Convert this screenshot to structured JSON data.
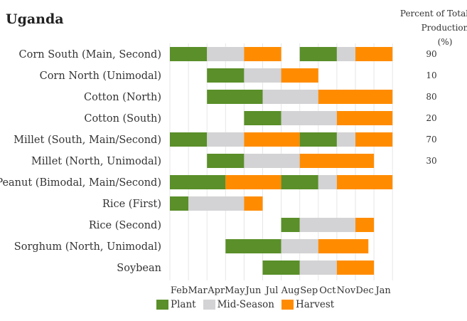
{
  "title": "Uganda",
  "pct_header": {
    "line1": "Percent of Total",
    "line2": "Production (%)"
  },
  "colors": {
    "plant": "#5a8f29",
    "mid": "#d3d2d4",
    "harvest": "#ff8c00",
    "grid": "#e6e6e6"
  },
  "chart_data": {
    "type": "bar",
    "subtype": "gantt-calendar",
    "x_tick_labels": [
      "Feb",
      "Mar",
      "Apr",
      "May",
      "Jun",
      "Jul",
      "Aug",
      "Sep",
      "Oct",
      "Nov",
      "Dec",
      "Jan"
    ],
    "legend": [
      {
        "key": "plant",
        "label": "Plant"
      },
      {
        "key": "mid",
        "label": "Mid-Season"
      },
      {
        "key": "harvest",
        "label": "Harvest"
      }
    ],
    "categories": [
      {
        "label": "Corn South (Main, Second)",
        "pct": "90",
        "segments": [
          {
            "stage": "plant",
            "start": 0,
            "end": 2
          },
          {
            "stage": "mid",
            "start": 2,
            "end": 4
          },
          {
            "stage": "harvest",
            "start": 4,
            "end": 6
          },
          {
            "stage": "plant",
            "start": 7,
            "end": 9
          },
          {
            "stage": "mid",
            "start": 9,
            "end": 10
          },
          {
            "stage": "harvest",
            "start": 10,
            "end": 12
          }
        ]
      },
      {
        "label": "Corn North (Unimodal)",
        "pct": "10",
        "segments": [
          {
            "stage": "plant",
            "start": 2,
            "end": 4
          },
          {
            "stage": "mid",
            "start": 4,
            "end": 6
          },
          {
            "stage": "harvest",
            "start": 6,
            "end": 8
          }
        ]
      },
      {
        "label": "Cotton (North)",
        "pct": "80",
        "segments": [
          {
            "stage": "plant",
            "start": 2,
            "end": 5
          },
          {
            "stage": "mid",
            "start": 5,
            "end": 8
          },
          {
            "stage": "harvest",
            "start": 8,
            "end": 12
          }
        ]
      },
      {
        "label": "Cotton (South)",
        "pct": "20",
        "segments": [
          {
            "stage": "plant",
            "start": 4,
            "end": 6
          },
          {
            "stage": "mid",
            "start": 6,
            "end": 9
          },
          {
            "stage": "harvest",
            "start": 9,
            "end": 12
          }
        ]
      },
      {
        "label": "Millet (South, Main/Second)",
        "pct": "70",
        "segments": [
          {
            "stage": "plant",
            "start": 0,
            "end": 2
          },
          {
            "stage": "mid",
            "start": 2,
            "end": 4
          },
          {
            "stage": "harvest",
            "start": 4,
            "end": 7
          },
          {
            "stage": "plant",
            "start": 7,
            "end": 9
          },
          {
            "stage": "mid",
            "start": 9,
            "end": 10
          },
          {
            "stage": "harvest",
            "start": 10,
            "end": 12
          }
        ]
      },
      {
        "label": "Millet (North, Unimodal)",
        "pct": "30",
        "segments": [
          {
            "stage": "plant",
            "start": 2,
            "end": 4
          },
          {
            "stage": "mid",
            "start": 4,
            "end": 7
          },
          {
            "stage": "harvest",
            "start": 7,
            "end": 11
          }
        ]
      },
      {
        "label": "Peanut (Bimodal, Main/Second)",
        "pct": "",
        "segments": [
          {
            "stage": "plant",
            "start": 0,
            "end": 3
          },
          {
            "stage": "harvest",
            "start": 3,
            "end": 6
          },
          {
            "stage": "plant",
            "start": 6,
            "end": 8
          },
          {
            "stage": "mid",
            "start": 8,
            "end": 9
          },
          {
            "stage": "harvest",
            "start": 9,
            "end": 12
          }
        ]
      },
      {
        "label": "Rice (First)",
        "pct": "",
        "segments": [
          {
            "stage": "plant",
            "start": 0,
            "end": 1
          },
          {
            "stage": "mid",
            "start": 1,
            "end": 4
          },
          {
            "stage": "harvest",
            "start": 4,
            "end": 5
          }
        ]
      },
      {
        "label": "Rice (Second)",
        "pct": "",
        "segments": [
          {
            "stage": "plant",
            "start": 6,
            "end": 7
          },
          {
            "stage": "mid",
            "start": 7,
            "end": 10
          },
          {
            "stage": "harvest",
            "start": 10,
            "end": 11
          }
        ]
      },
      {
        "label": "Sorghum (North, Unimodal)",
        "pct": "",
        "segments": [
          {
            "stage": "plant",
            "start": 3,
            "end": 6
          },
          {
            "stage": "mid",
            "start": 6,
            "end": 8
          },
          {
            "stage": "harvest",
            "start": 8,
            "end": 10.7
          }
        ]
      },
      {
        "label": "Soybean",
        "pct": "",
        "segments": [
          {
            "stage": "plant",
            "start": 5,
            "end": 7
          },
          {
            "stage": "mid",
            "start": 7,
            "end": 9
          },
          {
            "stage": "harvest",
            "start": 9,
            "end": 11
          }
        ]
      }
    ]
  }
}
